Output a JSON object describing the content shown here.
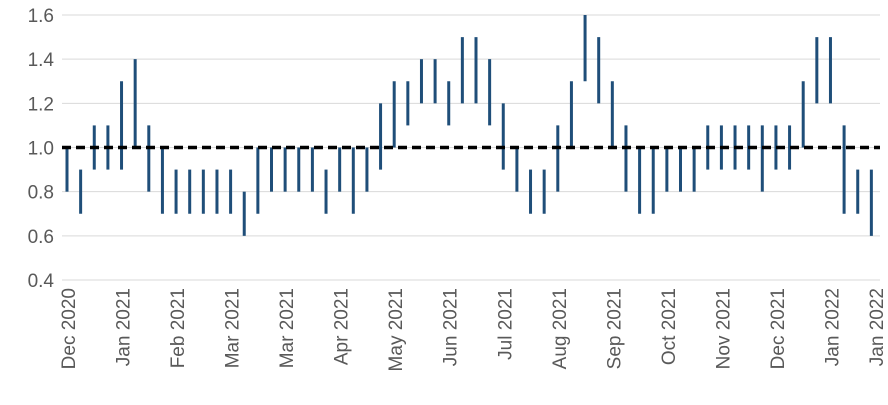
{
  "chart_data": {
    "type": "range-bar",
    "title": "",
    "xlabel": "",
    "ylabel": "",
    "ylim": [
      0.4,
      1.6
    ],
    "yticks": [
      "0.4",
      "0.6",
      "0.8",
      "1.0",
      "1.2",
      "1.4",
      "1.6"
    ],
    "grid": "horizontal",
    "legend": "none",
    "reference_line": {
      "value": 1.0,
      "style": "dashed",
      "color": "#000000"
    },
    "bar_color": "#1f4e79",
    "x_tick_labels": [
      "Dec 2020",
      "Jan 2021",
      "Feb 2021",
      "Mar 2021",
      "Mar 2021",
      "Apr 2021",
      "May 2021",
      "Jun 2021",
      "Jul 2021",
      "Aug 2021",
      "Sep 2021",
      "Oct 2021",
      "Nov 2021",
      "Dec 2021",
      "Jan 2022",
      "Jan 2022"
    ],
    "x_tick_index": [
      0,
      4,
      8,
      12,
      16,
      20,
      24,
      28,
      32,
      36,
      40,
      44,
      48,
      52,
      56,
      60
    ],
    "ranges": [
      [
        0.8,
        1.0
      ],
      [
        0.7,
        0.9
      ],
      [
        0.9,
        1.1
      ],
      [
        0.9,
        1.1
      ],
      [
        0.9,
        1.3
      ],
      [
        1.0,
        1.4
      ],
      [
        0.8,
        1.1
      ],
      [
        0.7,
        1.0
      ],
      [
        0.7,
        0.9
      ],
      [
        0.7,
        0.9
      ],
      [
        0.7,
        0.9
      ],
      [
        0.7,
        0.9
      ],
      [
        0.7,
        0.9
      ],
      [
        0.6,
        0.8
      ],
      [
        0.7,
        1.0
      ],
      [
        0.8,
        1.0
      ],
      [
        0.8,
        1.0
      ],
      [
        0.8,
        1.0
      ],
      [
        0.8,
        1.0
      ],
      [
        0.7,
        0.9
      ],
      [
        0.8,
        1.0
      ],
      [
        0.7,
        1.0
      ],
      [
        0.8,
        1.0
      ],
      [
        0.9,
        1.2
      ],
      [
        1.0,
        1.3
      ],
      [
        1.1,
        1.3
      ],
      [
        1.2,
        1.4
      ],
      [
        1.2,
        1.4
      ],
      [
        1.1,
        1.3
      ],
      [
        1.2,
        1.5
      ],
      [
        1.2,
        1.5
      ],
      [
        1.1,
        1.4
      ],
      [
        0.9,
        1.2
      ],
      [
        0.8,
        1.0
      ],
      [
        0.7,
        0.9
      ],
      [
        0.7,
        0.9
      ],
      [
        0.8,
        1.1
      ],
      [
        1.0,
        1.3
      ],
      [
        1.3,
        1.6
      ],
      [
        1.2,
        1.5
      ],
      [
        1.0,
        1.3
      ],
      [
        0.8,
        1.1
      ],
      [
        0.7,
        1.0
      ],
      [
        0.7,
        1.0
      ],
      [
        0.8,
        1.0
      ],
      [
        0.8,
        1.0
      ],
      [
        0.8,
        1.0
      ],
      [
        0.9,
        1.1
      ],
      [
        0.9,
        1.1
      ],
      [
        0.9,
        1.1
      ],
      [
        0.9,
        1.1
      ],
      [
        0.8,
        1.1
      ],
      [
        0.9,
        1.1
      ],
      [
        0.9,
        1.1
      ],
      [
        1.0,
        1.3
      ],
      [
        1.2,
        1.5
      ],
      [
        1.2,
        1.5
      ],
      [
        0.7,
        1.1
      ],
      [
        0.7,
        0.9
      ],
      [
        0.6,
        0.9
      ]
    ]
  }
}
